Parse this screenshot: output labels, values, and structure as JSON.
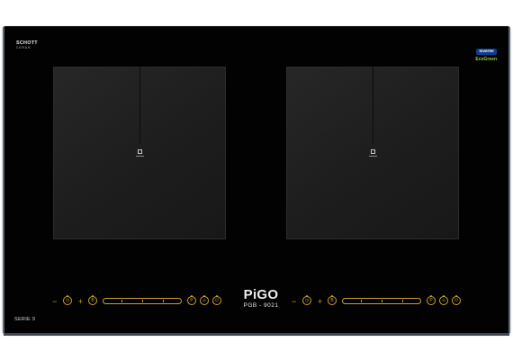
{
  "brands": {
    "top_left_line1": "SCHOTT",
    "top_left_line2": "CERAN",
    "top_right_badge": "Inverter",
    "top_right_eco": "EcoGreen"
  },
  "logo": {
    "name": "PiGO",
    "model": "PGB - 9021"
  },
  "series_label": "SERIE 9",
  "controls": {
    "minus": "−",
    "plus": "+",
    "power_icon": "power-icon",
    "boost_icon": "boost-icon",
    "pause_icon": "pause-icon",
    "timer_icon": "timer-icon"
  },
  "colors": {
    "panel": "#020202",
    "zone": "#222222",
    "accent": "#c9a227",
    "edge": "#5a6675"
  }
}
